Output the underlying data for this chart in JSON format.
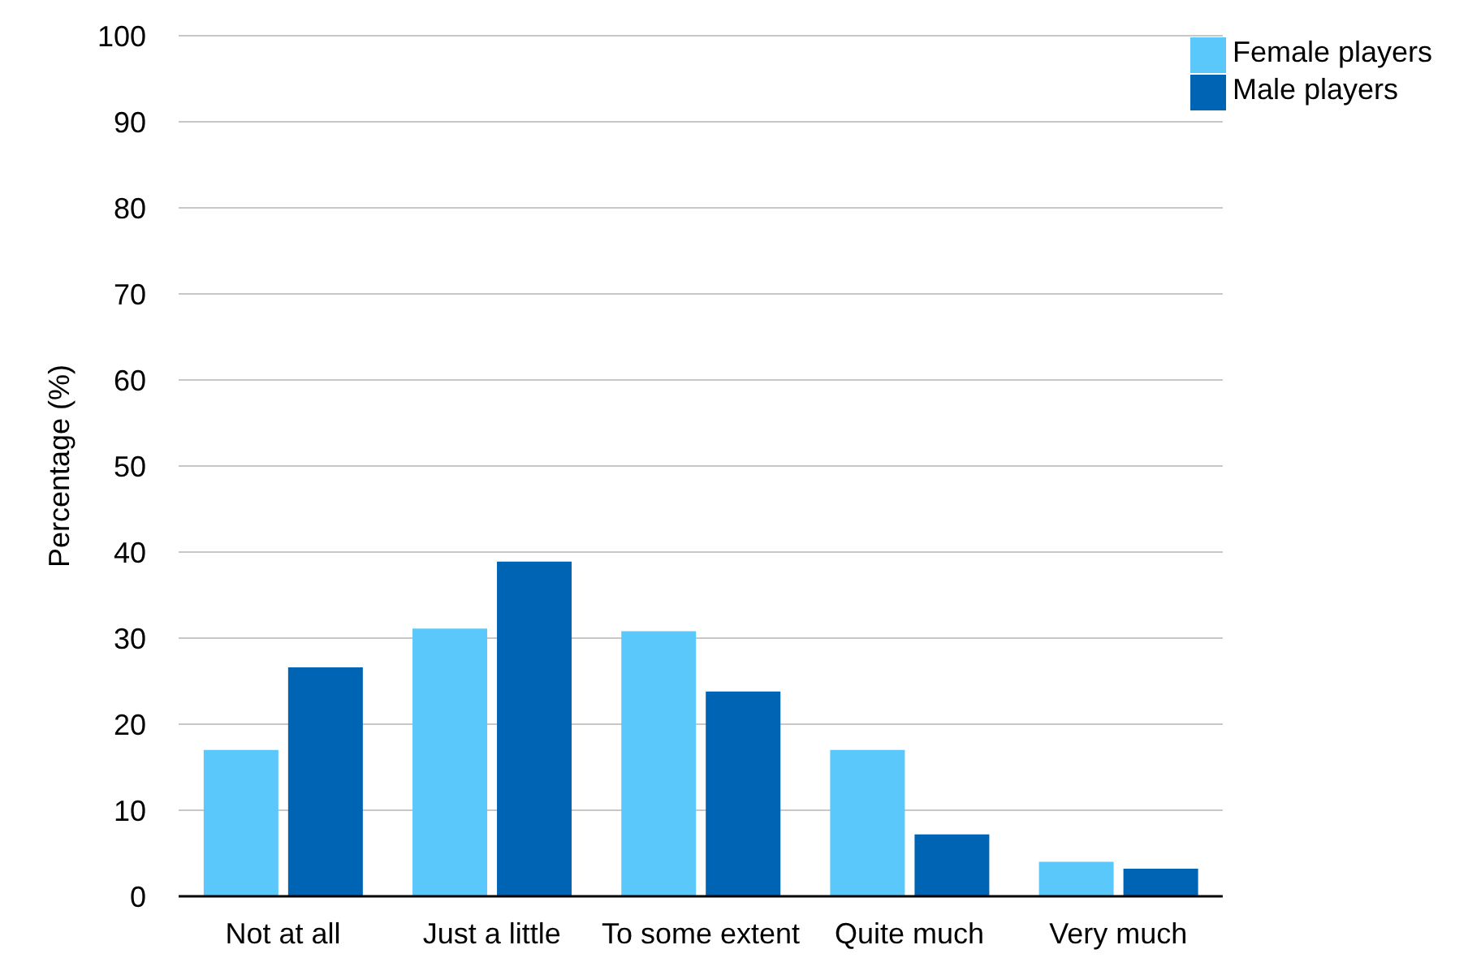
{
  "chart_data": {
    "type": "bar",
    "ylabel": "Percentage (%)",
    "categories": [
      "Not at all",
      "Just a little",
      "To some extent",
      "Quite much",
      "Very much"
    ],
    "series": [
      {
        "name": "Female players",
        "color": "#5ac8fa",
        "values": [
          17.0,
          31.1,
          30.8,
          17.0,
          4.0
        ]
      },
      {
        "name": "Male players",
        "color": "#0064b4",
        "values": [
          26.6,
          38.9,
          23.8,
          7.2,
          3.2
        ]
      }
    ],
    "ylim": [
      0,
      100
    ],
    "yticks": [
      0,
      10,
      20,
      30,
      40,
      50,
      60,
      70,
      80,
      90,
      100
    ],
    "grid": "y",
    "legend": "top right"
  }
}
